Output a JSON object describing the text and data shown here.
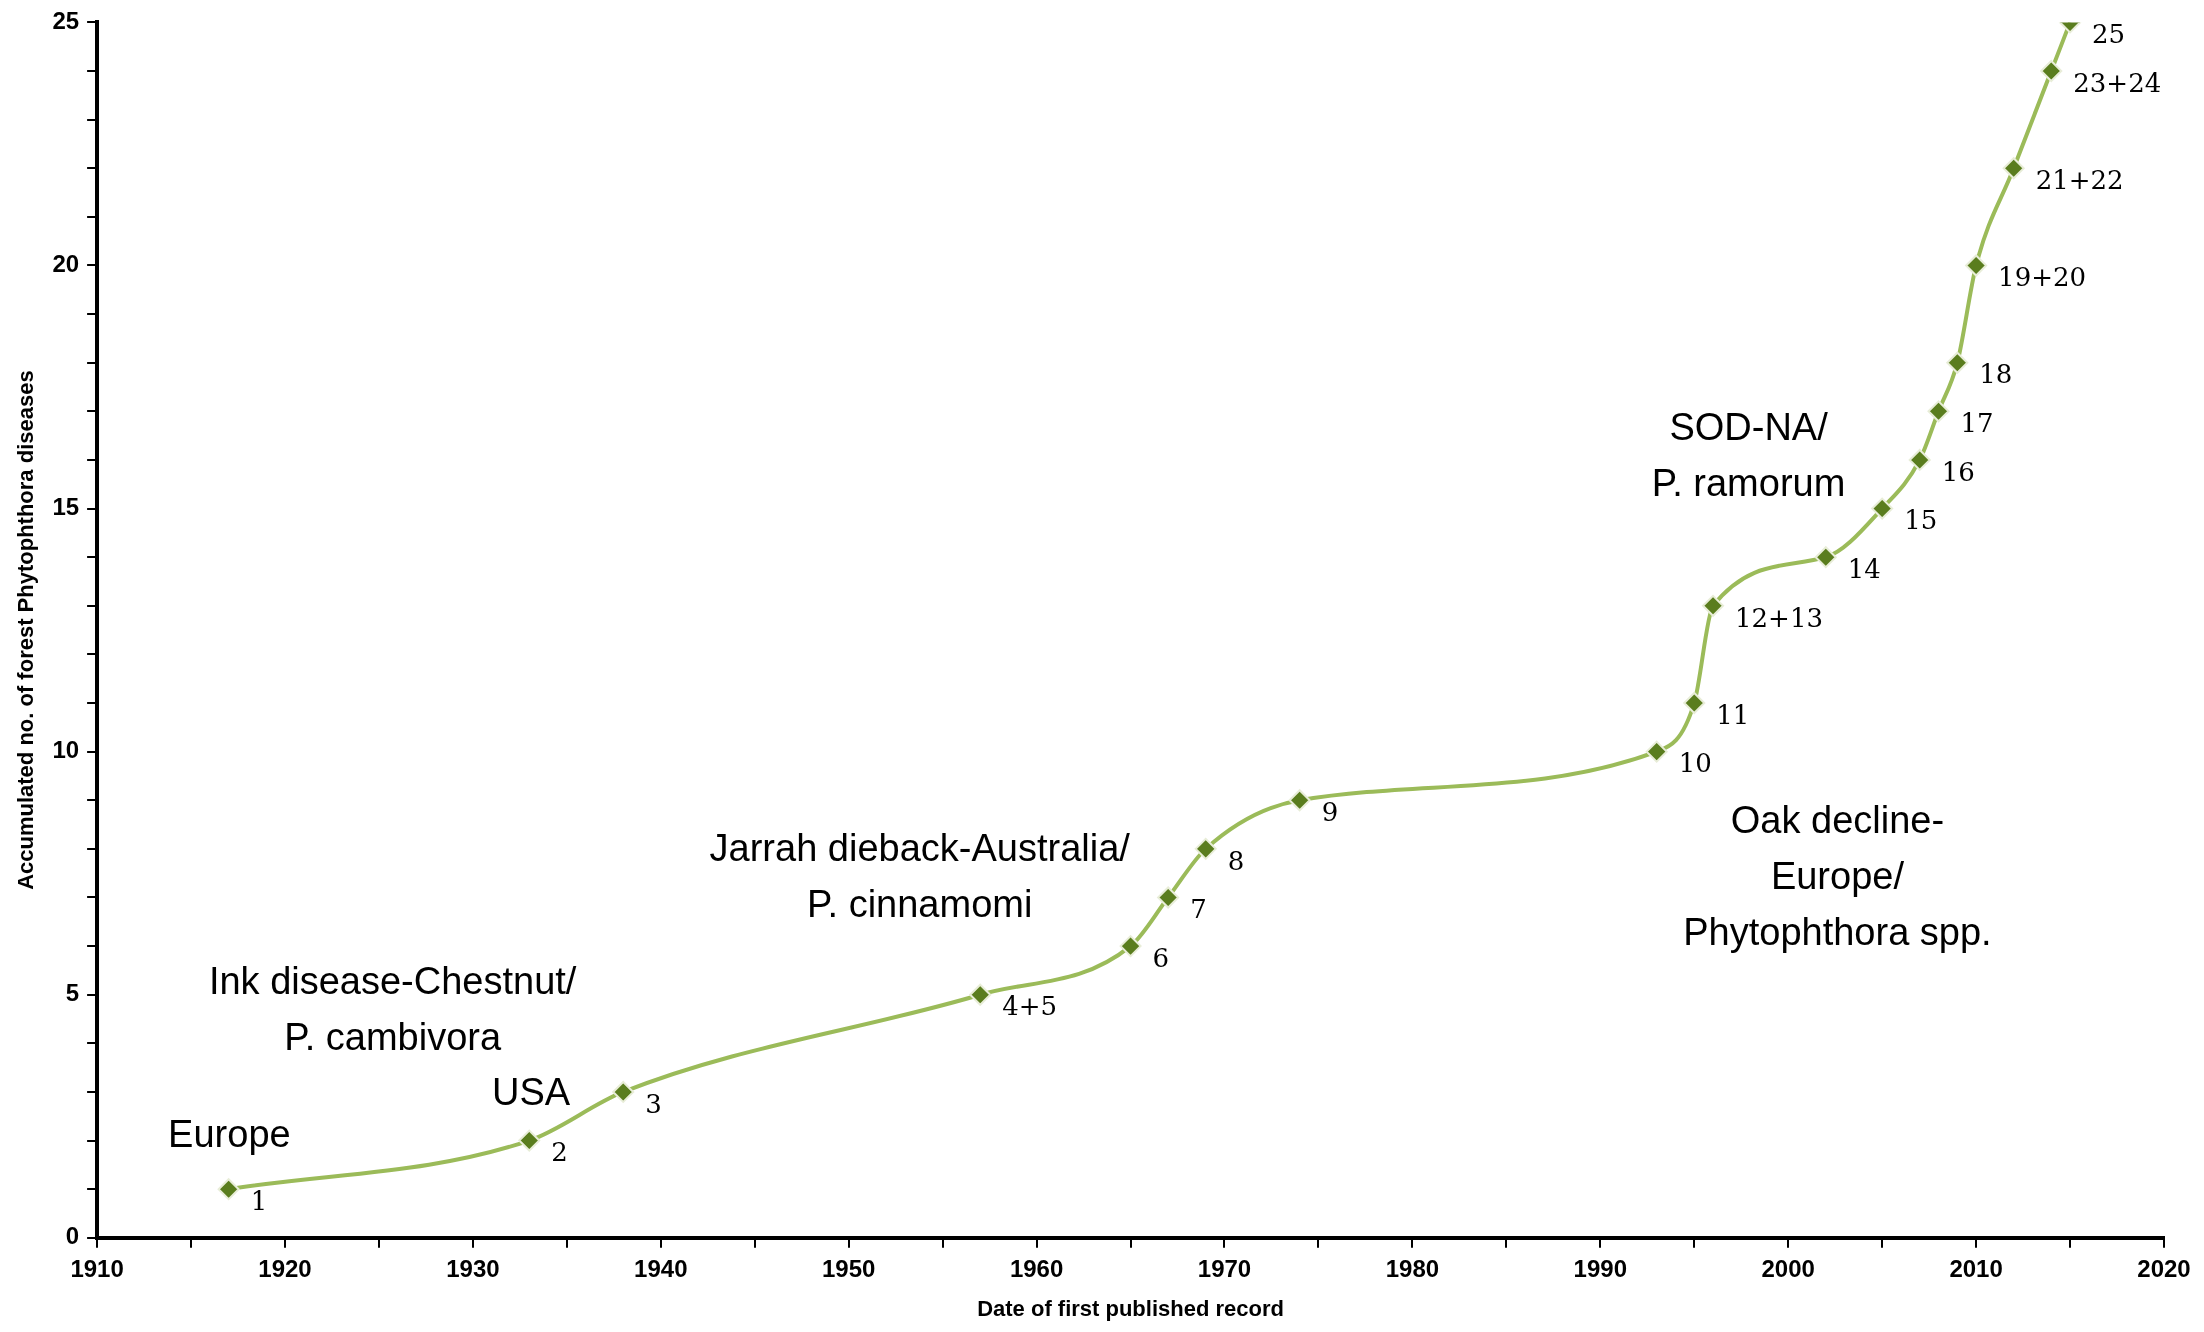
{
  "chart_data": {
    "type": "line",
    "xlabel": "Date of first published record",
    "ylabel": "Accumulated no. of forest Phytophthora diseases",
    "x": [
      1917,
      1933,
      1938,
      1957,
      1965,
      1967,
      1969,
      1974,
      1993,
      1995,
      1996,
      2002,
      2005,
      2007,
      2008,
      2009,
      2010,
      2012,
      2014,
      2015
    ],
    "series": [
      {
        "color": "#9bbb59",
        "values": [
          1,
          2,
          3,
          5,
          6,
          7,
          8,
          9,
          10,
          11,
          13,
          14,
          15,
          16,
          17,
          18,
          20,
          22,
          24,
          25
        ],
        "value_labels": [
          "1",
          "2",
          "3",
          "4+5",
          "6",
          "7",
          "8",
          "9",
          "10",
          "11",
          "12+13",
          "14",
          "15",
          "16",
          "17",
          "18",
          "19+20",
          "21+22",
          "23+24",
          "25"
        ]
      }
    ],
    "marker": "diamond",
    "line_style": "solid",
    "grid": false,
    "legend": false,
    "xlim": [
      1910,
      2020
    ],
    "xticks": [
      1910,
      {
        "value": 1915,
        "label": null
      },
      1920,
      {
        "value": 1925,
        "label": null
      },
      1930,
      {
        "value": 1935,
        "label": null
      },
      1940,
      {
        "value": 1945,
        "label": null
      },
      1950,
      {
        "value": 1955,
        "label": null
      },
      1960,
      {
        "value": 1965,
        "label": null
      },
      1970,
      {
        "value": 1975,
        "label": null
      },
      1980,
      {
        "value": 1985,
        "label": null
      },
      1990,
      {
        "value": 1995,
        "label": null
      },
      2000,
      {
        "value": 2005,
        "label": null
      },
      2010,
      {
        "value": 2015,
        "label": null
      },
      2020
    ],
    "ylim": [
      0,
      25
    ],
    "yticks": [
      0,
      {
        "value": 1,
        "label": null
      },
      {
        "value": 2,
        "label": null
      },
      {
        "value": 3,
        "label": null
      },
      {
        "value": 4,
        "label": null
      },
      5,
      {
        "value": 6,
        "label": null
      },
      {
        "value": 7,
        "label": null
      },
      {
        "value": 8,
        "label": null
      },
      {
        "value": 9,
        "label": null
      },
      10,
      {
        "value": 11,
        "label": null
      },
      {
        "value": 12,
        "label": null
      },
      {
        "value": 13,
        "label": null
      },
      {
        "value": 14,
        "label": null
      },
      15,
      {
        "value": 16,
        "label": null
      },
      {
        "value": 17,
        "label": null
      },
      {
        "value": 18,
        "label": null
      },
      {
        "value": 19,
        "label": null
      },
      20,
      {
        "value": 21,
        "label": null
      },
      {
        "value": 22,
        "label": null
      },
      {
        "value": 23,
        "label": null
      },
      {
        "value": 24,
        "label": null
      },
      25
    ],
    "annotations": [
      "Europe",
      "USA",
      "Ink disease-Chestnut/\nP. cambivora",
      "Jarrah dieback-Australia/\nP. cinnamomi",
      "SOD-NA/\nP. ramorum",
      "Oak decline-\nEurope/\nPhytophthora spp."
    ]
  }
}
